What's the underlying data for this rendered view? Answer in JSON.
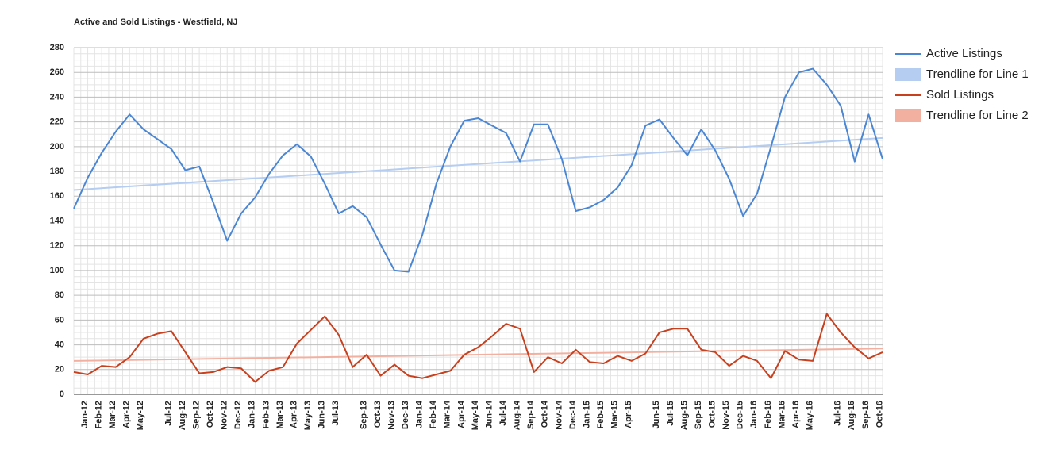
{
  "chart_data": {
    "type": "line",
    "title": "Active and Sold Listings - Westfield, NJ",
    "categories": [
      "Jan-12",
      "Feb-12",
      "Mar-12",
      "Apr-12",
      "May-12",
      null,
      "Jul-12",
      "Aug-12",
      "Sep-12",
      "Oct-12",
      "Nov-12",
      "Dec-12",
      "Jan-13",
      "Feb-13",
      "Mar-13",
      "Apr-13",
      "May-13",
      "Jun-13",
      "Jul-13",
      null,
      "Sep-13",
      "Oct-13",
      "Nov-13",
      "Dec-13",
      "Jan-14",
      "Feb-14",
      "Mar-14",
      "Apr-14",
      "May-14",
      "Jun-14",
      "Jul-14",
      "Aug-14",
      "Sep-14",
      "Oct-14",
      "Nov-14",
      "Dec-14",
      "Jan-15",
      "Feb-15",
      "Mar-15",
      "Apr-15",
      null,
      "Jun-15",
      "Jul-15",
      "Aug-15",
      "Sep-15",
      "Oct-15",
      "Nov-15",
      "Dec-15",
      "Jan-16",
      "Feb-16",
      "Mar-16",
      "Apr-16",
      "May-16",
      null,
      "Jul-16",
      "Aug-16",
      "Sep-16",
      "Oct-16",
      null
    ],
    "series": [
      {
        "name": "Active Listings",
        "color": "#4a86d4",
        "values": [
          150,
          175,
          195,
          212,
          226,
          214,
          206,
          198,
          181,
          184,
          155,
          124,
          146,
          159,
          178,
          193,
          202,
          192,
          170,
          146,
          152,
          143,
          121,
          100,
          99,
          129,
          170,
          200,
          221,
          223,
          217,
          211,
          188,
          218,
          218,
          190,
          148,
          151,
          157,
          167,
          185,
          217,
          222,
          207,
          193,
          214,
          197,
          174,
          144,
          162,
          200,
          240,
          260,
          263,
          250,
          233,
          188,
          226,
          190
        ]
      },
      {
        "name": "Sold Listings",
        "color": "#c8401e",
        "values": [
          18,
          16,
          23,
          22,
          30,
          45,
          49,
          51,
          34,
          17,
          18,
          22,
          21,
          10,
          19,
          22,
          41,
          52,
          63,
          48,
          22,
          32,
          15,
          24,
          15,
          13,
          16,
          19,
          32,
          38,
          47,
          57,
          53,
          18,
          30,
          25,
          36,
          26,
          25,
          31,
          27,
          33,
          50,
          53,
          53,
          36,
          34,
          23,
          31,
          27,
          13,
          35,
          28,
          27,
          65,
          50,
          38,
          29,
          34
        ]
      }
    ],
    "trendlines": [
      {
        "name": "Trendline for Line 1",
        "color": "#b4cdf0",
        "start": 165,
        "end": 207
      },
      {
        "name": "Trendline for Line 2",
        "color": "#f2b0a0",
        "start": 27,
        "end": 37
      }
    ],
    "ylim": [
      0,
      280
    ],
    "yticks": [
      0,
      20,
      40,
      60,
      80,
      100,
      120,
      140,
      160,
      180,
      200,
      220,
      240,
      260,
      280
    ],
    "grid": true,
    "legend": "right"
  }
}
